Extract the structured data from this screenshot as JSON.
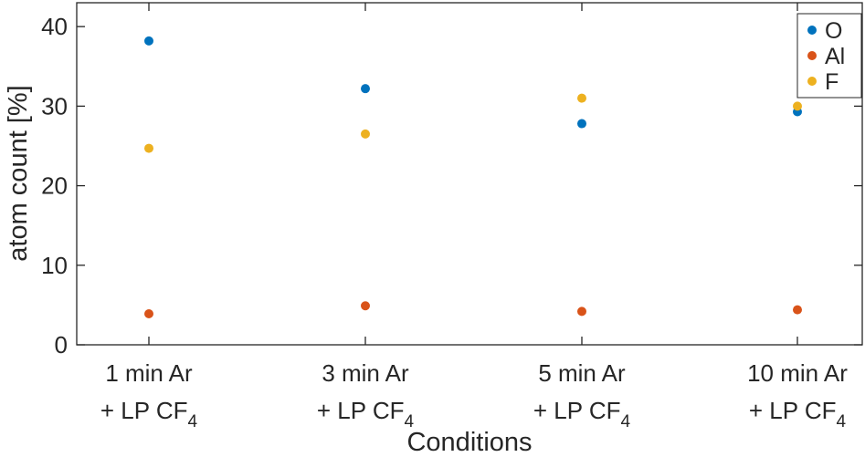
{
  "chart_data": {
    "type": "scatter",
    "categories": [
      {
        "line1": "1 min Ar",
        "line2": "+ LP CF",
        "sub": "4"
      },
      {
        "line1": "3 min Ar",
        "line2": "+ LP CF",
        "sub": "4"
      },
      {
        "line1": "5 min Ar",
        "line2": "+ LP CF",
        "sub": "4"
      },
      {
        "line1": "10 min Ar",
        "line2": "+ LP CF",
        "sub": "4"
      }
    ],
    "series": [
      {
        "name": "O",
        "color": "#0072BD",
        "values": [
          38.2,
          32.2,
          27.8,
          29.3
        ]
      },
      {
        "name": "Al",
        "color": "#D95319",
        "values": [
          3.9,
          4.9,
          4.2,
          4.4
        ]
      },
      {
        "name": "F",
        "color": "#EDB120",
        "values": [
          24.7,
          26.5,
          31.0,
          30.0
        ]
      }
    ],
    "xlabel": "Conditions",
    "ylabel": "atom count [%]",
    "ylim": [
      0,
      43
    ],
    "yticks": [
      0,
      10,
      20,
      30,
      40
    ],
    "grid": false,
    "legend_position": "top-right"
  }
}
